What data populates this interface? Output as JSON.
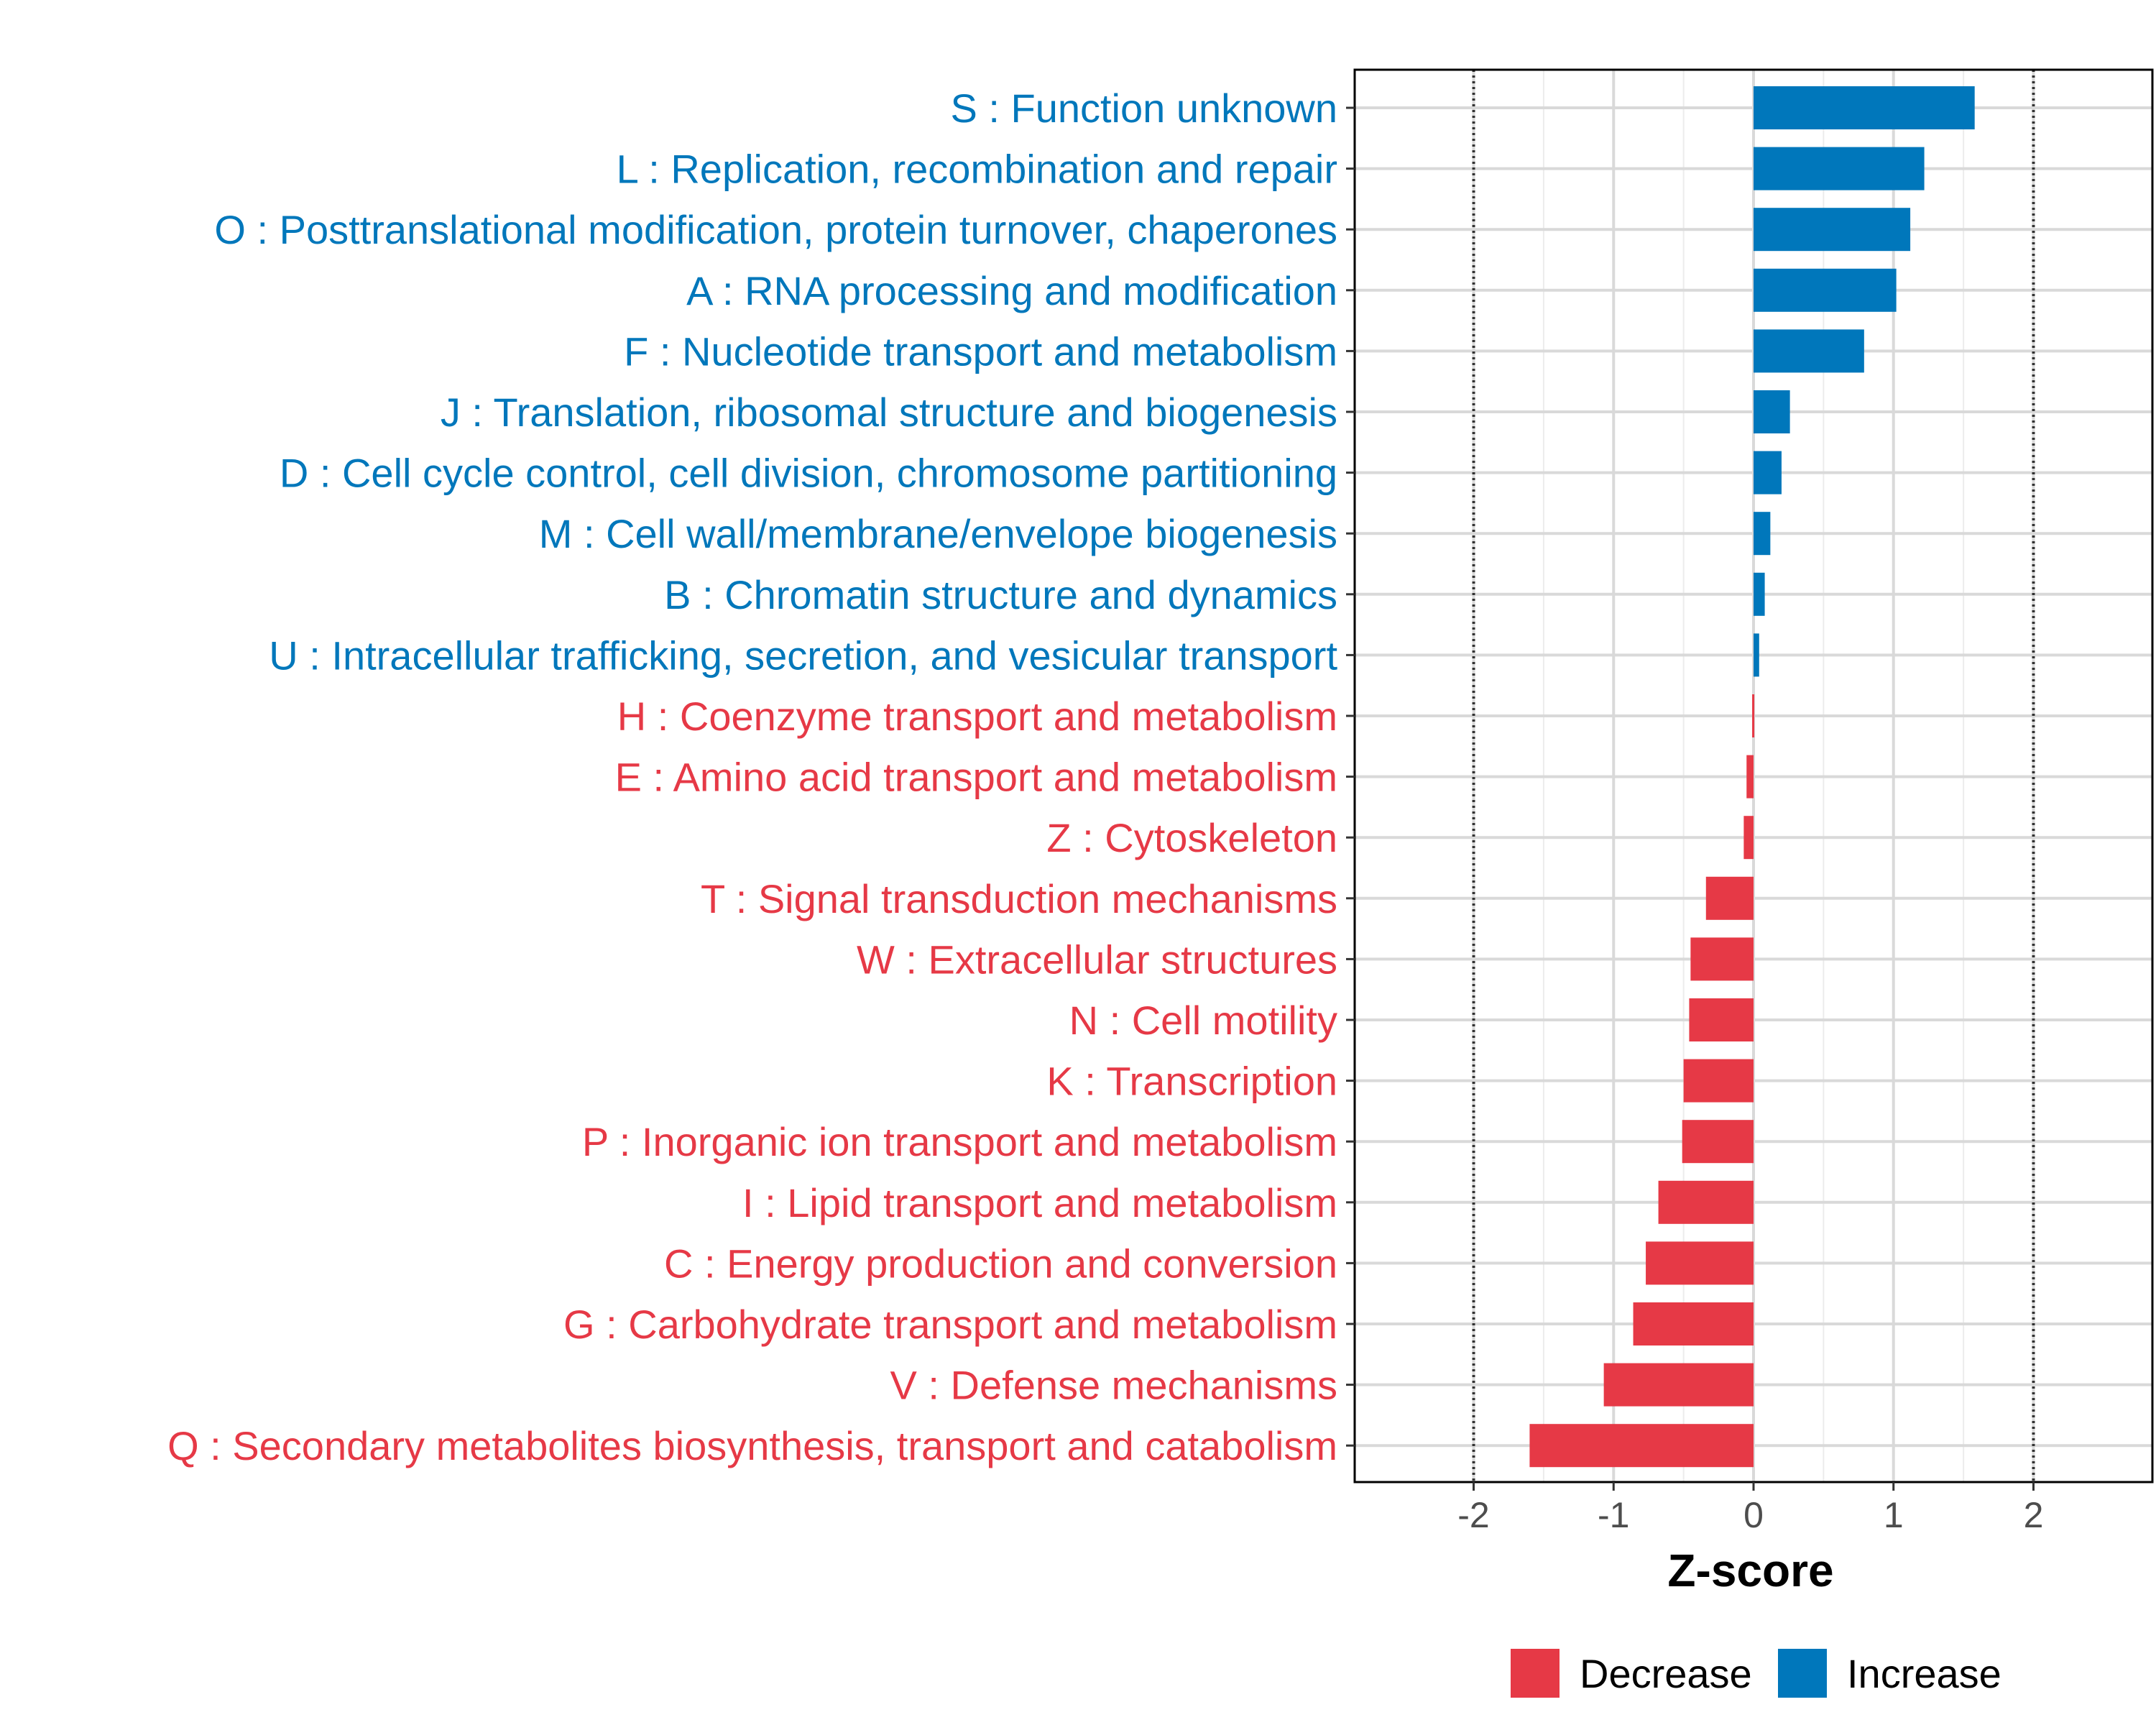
{
  "chart_data": {
    "type": "bar",
    "orientation": "horizontal",
    "xlabel": "Z-score",
    "ylabel": "",
    "xlim": [
      -2.85,
      2.85
    ],
    "x_ticks": [
      -2,
      -1,
      0,
      1,
      2
    ],
    "x_tick_labels": [
      "-2",
      "-1",
      "0",
      "1",
      "2"
    ],
    "reference_lines": [
      -2,
      2
    ],
    "grid": true,
    "legend_position": "bottom",
    "colors": {
      "Decrease": "#e63946",
      "Increase": "#0077bb"
    },
    "legend": [
      {
        "label": "Decrease",
        "color": "#e63946"
      },
      {
        "label": "Increase",
        "color": "#0077bb"
      }
    ],
    "categories": [
      "S : Function unknown",
      "L : Replication, recombination and repair",
      "O : Posttranslational modification, protein turnover, chaperones",
      "A : RNA processing and modification",
      "F : Nucleotide transport and metabolism",
      "J : Translation, ribosomal structure and biogenesis",
      "D : Cell cycle control, cell division, chromosome partitioning",
      "M : Cell wall/membrane/envelope biogenesis",
      "B : Chromatin structure and dynamics",
      "U : Intracellular trafficking, secretion, and vesicular transport",
      "H : Coenzyme transport and metabolism",
      "E : Amino acid transport and metabolism",
      "Z : Cytoskeleton",
      "T : Signal transduction mechanisms",
      "W : Extracellular structures",
      "N : Cell motility",
      "K : Transcription",
      "P : Inorganic ion transport and metabolism",
      "I : Lipid transport and metabolism",
      "C : Energy production and conversion",
      "G : Carbohydrate transport and metabolism",
      "V : Defense mechanisms",
      "Q : Secondary metabolites biosynthesis, transport and catabolism"
    ],
    "values": [
      1.58,
      1.22,
      1.12,
      1.02,
      0.79,
      0.26,
      0.2,
      0.12,
      0.08,
      0.04,
      -0.01,
      -0.05,
      -0.07,
      -0.34,
      -0.45,
      -0.46,
      -0.5,
      -0.51,
      -0.68,
      -0.77,
      -0.86,
      -1.07,
      -1.6
    ],
    "groups": [
      "Increase",
      "Increase",
      "Increase",
      "Increase",
      "Increase",
      "Increase",
      "Increase",
      "Increase",
      "Increase",
      "Increase",
      "Decrease",
      "Decrease",
      "Decrease",
      "Decrease",
      "Decrease",
      "Decrease",
      "Decrease",
      "Decrease",
      "Decrease",
      "Decrease",
      "Decrease",
      "Decrease",
      "Decrease"
    ]
  }
}
